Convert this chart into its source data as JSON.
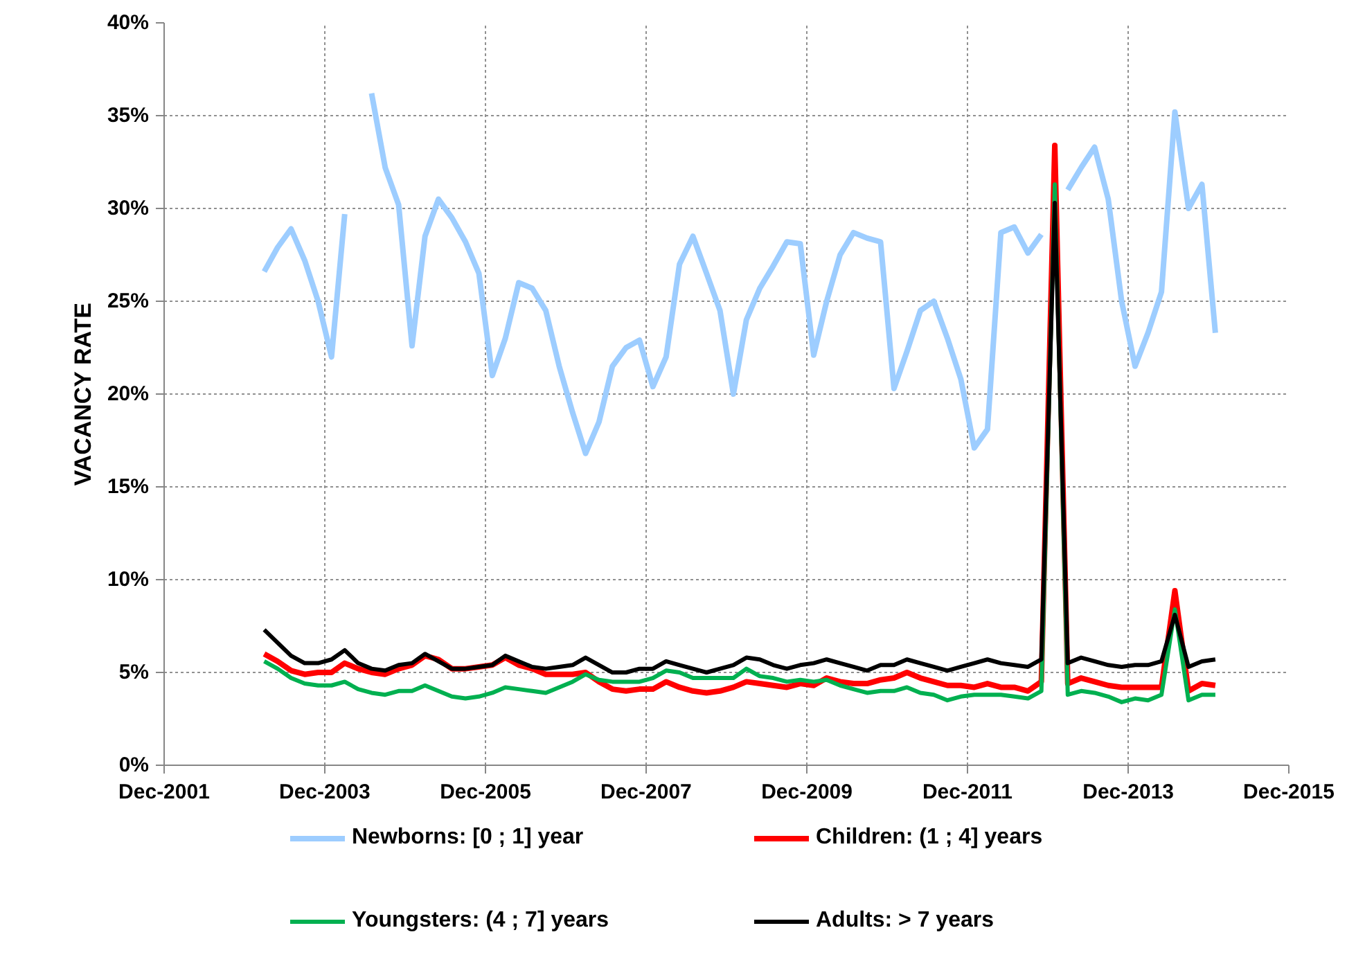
{
  "chart_data": {
    "type": "line",
    "ylabel": "VACANCY RATE",
    "x": [
      "2003-03",
      "2003-05",
      "2003-07",
      "2003-09",
      "2003-11",
      "2004-01",
      "2004-03",
      "2004-05",
      "2004-07",
      "2004-09",
      "2004-11",
      "2005-01",
      "2005-03",
      "2005-05",
      "2005-07",
      "2005-09",
      "2005-11",
      "2006-01",
      "2006-03",
      "2006-05",
      "2006-07",
      "2006-09",
      "2006-11",
      "2007-01",
      "2007-03",
      "2007-05",
      "2007-07",
      "2007-09",
      "2007-11",
      "2008-01",
      "2008-03",
      "2008-05",
      "2008-07",
      "2008-09",
      "2008-11",
      "2009-01",
      "2009-03",
      "2009-05",
      "2009-07",
      "2009-09",
      "2009-11",
      "2010-01",
      "2010-03",
      "2010-05",
      "2010-07",
      "2010-09",
      "2010-11",
      "2011-01",
      "2011-03",
      "2011-05",
      "2011-07",
      "2011-09",
      "2011-11",
      "2012-01",
      "2012-03",
      "2012-05",
      "2012-07",
      "2012-09",
      "2012-11",
      "2013-01",
      "2013-03",
      "2013-05",
      "2013-07",
      "2013-09",
      "2013-11",
      "2014-01",
      "2014-03",
      "2014-05",
      "2014-07",
      "2014-09",
      "2014-11",
      "2015-01"
    ],
    "series": [
      {
        "name": "Newborns: [0 ; 1] year",
        "color": "#9dcdff",
        "values": [
          26.6,
          27.9,
          28.9,
          27.2,
          25.0,
          22.0,
          29.7,
          null,
          36.2,
          32.2,
          30.2,
          22.6,
          28.5,
          30.5,
          29.5,
          28.2,
          26.5,
          21.0,
          23.0,
          26.0,
          25.7,
          24.5,
          21.5,
          19.0,
          16.8,
          18.5,
          21.5,
          22.5,
          22.9,
          20.4,
          22.0,
          27.0,
          28.5,
          26.5,
          24.5,
          20.0,
          24.0,
          25.7,
          26.9,
          28.2,
          28.1,
          22.1,
          25.0,
          27.5,
          28.7,
          28.4,
          28.2,
          20.3,
          22.3,
          24.5,
          25.0,
          23.0,
          20.8,
          17.1,
          18.1,
          28.7,
          29.0,
          27.6,
          28.6,
          null,
          31.0,
          32.2,
          33.3,
          30.5,
          25.0,
          21.5,
          23.3,
          25.5,
          35.2,
          30.0,
          31.3,
          23.3
        ]
      },
      {
        "name": "Children: (1 ; 4] years",
        "color": "#ff0000",
        "values": [
          6.0,
          5.6,
          5.1,
          4.9,
          5.0,
          5.0,
          5.5,
          5.2,
          5.0,
          4.9,
          5.2,
          5.4,
          5.9,
          5.7,
          5.2,
          5.2,
          5.3,
          5.4,
          5.8,
          5.4,
          5.2,
          4.9,
          4.9,
          4.9,
          5.0,
          4.5,
          4.1,
          4.0,
          4.1,
          4.1,
          4.5,
          4.2,
          4.0,
          3.9,
          4.0,
          4.2,
          4.5,
          4.4,
          4.3,
          4.2,
          4.4,
          4.3,
          4.7,
          4.5,
          4.4,
          4.4,
          4.6,
          4.7,
          5.0,
          4.7,
          4.5,
          4.3,
          4.3,
          4.2,
          4.4,
          4.2,
          4.2,
          4.0,
          4.5,
          33.4,
          4.4,
          4.7,
          4.5,
          4.3,
          4.2,
          4.2,
          4.2,
          4.2,
          9.4,
          4.0,
          4.4,
          4.3
        ]
      },
      {
        "name": "Youngsters: (4 ; 7] years",
        "color": "#00b050",
        "values": [
          5.6,
          5.2,
          4.7,
          4.4,
          4.3,
          4.3,
          4.5,
          4.1,
          3.9,
          3.8,
          4.0,
          4.0,
          4.3,
          4.0,
          3.7,
          3.6,
          3.7,
          3.9,
          4.2,
          4.1,
          4.0,
          3.9,
          4.2,
          4.5,
          4.9,
          4.6,
          4.5,
          4.5,
          4.5,
          4.7,
          5.1,
          5.0,
          4.7,
          4.7,
          4.7,
          4.7,
          5.2,
          4.8,
          4.7,
          4.5,
          4.6,
          4.5,
          4.6,
          4.3,
          4.1,
          3.9,
          4.0,
          4.0,
          4.2,
          3.9,
          3.8,
          3.5,
          3.7,
          3.8,
          3.8,
          3.8,
          3.7,
          3.6,
          4.0,
          31.3,
          3.8,
          4.0,
          3.9,
          3.7,
          3.4,
          3.6,
          3.5,
          3.8,
          8.4,
          3.5,
          3.8,
          3.8
        ]
      },
      {
        "name": "Adults: > 7 years",
        "color": "#000000",
        "values": [
          7.3,
          6.6,
          5.9,
          5.5,
          5.5,
          5.7,
          6.2,
          5.5,
          5.2,
          5.1,
          5.4,
          5.5,
          6.0,
          5.6,
          5.2,
          5.2,
          5.3,
          5.4,
          5.9,
          5.6,
          5.3,
          5.2,
          5.3,
          5.4,
          5.8,
          5.4,
          5.0,
          5.0,
          5.2,
          5.2,
          5.6,
          5.4,
          5.2,
          5.0,
          5.2,
          5.4,
          5.8,
          5.7,
          5.4,
          5.2,
          5.4,
          5.5,
          5.7,
          5.5,
          5.3,
          5.1,
          5.4,
          5.4,
          5.7,
          5.5,
          5.3,
          5.1,
          5.3,
          5.5,
          5.7,
          5.5,
          5.4,
          5.3,
          5.7,
          30.3,
          5.5,
          5.8,
          5.6,
          5.4,
          5.3,
          5.4,
          5.4,
          5.6,
          8.1,
          5.3,
          5.6,
          5.7
        ]
      }
    ],
    "xlim": [
      "2001-12",
      "2015-12"
    ],
    "xticks": [
      {
        "value": "2001-12",
        "label": "Dec-2001"
      },
      {
        "value": "2003-12",
        "label": "Dec-2003"
      },
      {
        "value": "2005-12",
        "label": "Dec-2005"
      },
      {
        "value": "2007-12",
        "label": "Dec-2007"
      },
      {
        "value": "2009-12",
        "label": "Dec-2009"
      },
      {
        "value": "2011-12",
        "label": "Dec-2011"
      },
      {
        "value": "2013-12",
        "label": "Dec-2013"
      },
      {
        "value": "2015-12",
        "label": "Dec-2015"
      }
    ],
    "ylim": [
      0,
      40
    ],
    "yticks": [
      {
        "value": 0,
        "label": "0%"
      },
      {
        "value": 5,
        "label": "5%"
      },
      {
        "value": 10,
        "label": "10%"
      },
      {
        "value": 15,
        "label": "15%"
      },
      {
        "value": 20,
        "label": "20%"
      },
      {
        "value": 25,
        "label": "25%"
      },
      {
        "value": 30,
        "label": "30%"
      },
      {
        "value": 35,
        "label": "35%"
      },
      {
        "value": 40,
        "label": "40%"
      }
    ],
    "grid": true,
    "legend": "bottom",
    "marker": "none",
    "line_style": "solid"
  }
}
